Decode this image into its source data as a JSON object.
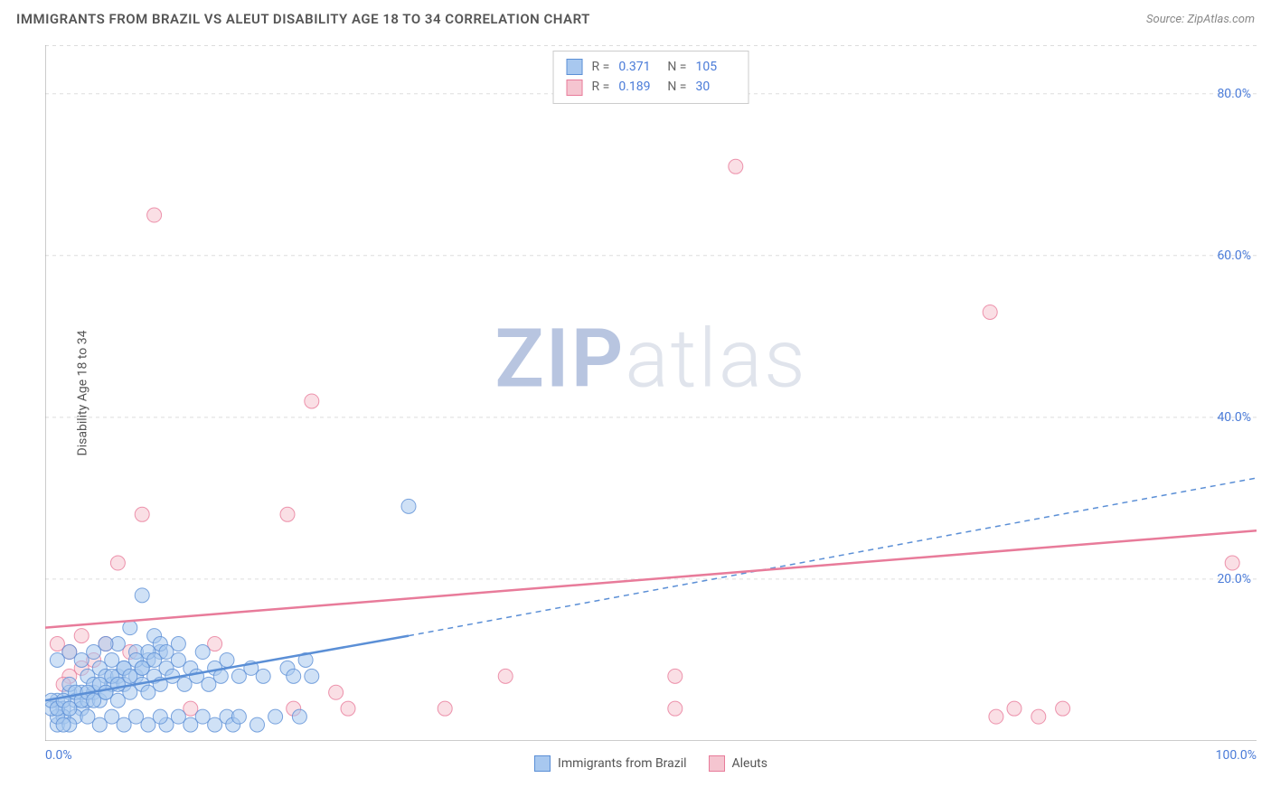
{
  "header": {
    "title": "IMMIGRANTS FROM BRAZIL VS ALEUT DISABILITY AGE 18 TO 34 CORRELATION CHART",
    "source_prefix": "Source: ",
    "source_name": "ZipAtlas.com"
  },
  "watermark": {
    "zip": "ZIP",
    "atlas": "atlas"
  },
  "chart": {
    "type": "scatter",
    "ylabel": "Disability Age 18 to 34",
    "xlim": [
      0,
      100
    ],
    "ylim": [
      0,
      86
    ],
    "xtick_positions": [
      0,
      50,
      100
    ],
    "xtick_labels": [
      "0.0%",
      "",
      "100.0%"
    ],
    "xtick_minor": [
      16.67,
      33.33,
      50,
      66.67,
      83.33
    ],
    "ytick_positions": [
      20,
      40,
      60,
      80
    ],
    "ytick_labels": [
      "20.0%",
      "40.0%",
      "60.0%",
      "80.0%"
    ],
    "background_color": "#ffffff",
    "grid_color": "#dddddd",
    "axis_color": "#999999",
    "marker_radius": 8,
    "marker_opacity": 0.55,
    "series": [
      {
        "name": "Immigrants from Brazil",
        "color_fill": "#a8c8ef",
        "color_stroke": "#5b8fd6",
        "R": "0.371",
        "N": "105",
        "trend": {
          "x1": 0,
          "y1": 5,
          "x2": 30,
          "y2": 13,
          "dash_x2": 100,
          "dash_y2": 32.5,
          "stroke_width": 2.5
        },
        "points": [
          [
            1,
            5
          ],
          [
            1.5,
            4
          ],
          [
            2,
            6
          ],
          [
            2,
            7
          ],
          [
            2.5,
            5
          ],
          [
            3,
            4
          ],
          [
            3,
            6
          ],
          [
            3.5,
            8
          ],
          [
            3.5,
            5
          ],
          [
            4,
            6
          ],
          [
            4,
            7
          ],
          [
            4.5,
            5
          ],
          [
            4.5,
            9
          ],
          [
            5,
            6
          ],
          [
            5,
            8
          ],
          [
            5.5,
            7
          ],
          [
            5.5,
            10
          ],
          [
            6,
            5
          ],
          [
            6,
            8
          ],
          [
            6,
            12
          ],
          [
            6.5,
            7
          ],
          [
            6.5,
            9
          ],
          [
            7,
            6
          ],
          [
            7,
            14
          ],
          [
            7.5,
            8
          ],
          [
            7.5,
            11
          ],
          [
            8,
            7
          ],
          [
            8,
            9
          ],
          [
            8,
            18
          ],
          [
            8.5,
            6
          ],
          [
            8.5,
            10
          ],
          [
            9,
            8
          ],
          [
            9,
            13
          ],
          [
            9.5,
            7
          ],
          [
            9.5,
            11
          ],
          [
            10,
            9
          ],
          [
            10,
            2
          ],
          [
            10.5,
            8
          ],
          [
            11,
            10
          ],
          [
            11,
            3
          ],
          [
            11.5,
            7
          ],
          [
            12,
            2
          ],
          [
            12,
            9
          ],
          [
            12.5,
            8
          ],
          [
            13,
            3
          ],
          [
            13,
            11
          ],
          [
            13.5,
            7
          ],
          [
            14,
            2
          ],
          [
            14,
            9
          ],
          [
            14.5,
            8
          ],
          [
            15,
            3
          ],
          [
            15,
            10
          ],
          [
            15.5,
            2
          ],
          [
            16,
            8
          ],
          [
            16,
            3
          ],
          [
            17,
            9
          ],
          [
            17.5,
            2
          ],
          [
            18,
            8
          ],
          [
            19,
            3
          ],
          [
            20,
            9
          ],
          [
            20.5,
            8
          ],
          [
            21,
            3
          ],
          [
            21.5,
            10
          ],
          [
            22,
            8
          ],
          [
            30,
            29
          ],
          [
            1,
            10
          ],
          [
            2,
            11
          ],
          [
            3,
            10
          ],
          [
            4,
            11
          ],
          [
            5,
            12
          ],
          [
            2.5,
            3
          ],
          [
            3.5,
            3
          ],
          [
            4.5,
            2
          ],
          [
            5.5,
            3
          ],
          [
            6.5,
            2
          ],
          [
            7.5,
            3
          ],
          [
            8.5,
            2
          ],
          [
            9.5,
            3
          ],
          [
            1,
            2
          ],
          [
            1.5,
            3
          ],
          [
            2,
            2
          ],
          [
            1,
            3
          ],
          [
            1.5,
            2
          ],
          [
            0.5,
            4
          ],
          [
            0.5,
            5
          ],
          [
            1,
            4
          ],
          [
            1.5,
            5
          ],
          [
            2,
            4
          ],
          [
            2.5,
            6
          ],
          [
            3,
            5
          ],
          [
            3.5,
            6
          ],
          [
            4,
            5
          ],
          [
            4.5,
            7
          ],
          [
            5,
            6
          ],
          [
            5.5,
            8
          ],
          [
            6,
            7
          ],
          [
            6.5,
            9
          ],
          [
            7,
            8
          ],
          [
            7.5,
            10
          ],
          [
            8,
            9
          ],
          [
            8.5,
            11
          ],
          [
            9,
            10
          ],
          [
            9.5,
            12
          ],
          [
            10,
            11
          ],
          [
            11,
            12
          ]
        ]
      },
      {
        "name": "Aleuts",
        "color_fill": "#f5c5d0",
        "color_stroke": "#e87b9a",
        "R": "0.189",
        "N": "30",
        "trend": {
          "x1": 0,
          "y1": 14,
          "x2": 100,
          "y2": 26,
          "stroke_width": 2.5
        },
        "points": [
          [
            1,
            12
          ],
          [
            2,
            11
          ],
          [
            3,
            13
          ],
          [
            4,
            10
          ],
          [
            5,
            12
          ],
          [
            6,
            22
          ],
          [
            7,
            11
          ],
          [
            9,
            65
          ],
          [
            8,
            28
          ],
          [
            12,
            4
          ],
          [
            14,
            12
          ],
          [
            20,
            28
          ],
          [
            20.5,
            4
          ],
          [
            22,
            42
          ],
          [
            24,
            6
          ],
          [
            25,
            4
          ],
          [
            33,
            4
          ],
          [
            38,
            8
          ],
          [
            52,
            4
          ],
          [
            52,
            8
          ],
          [
            57,
            71
          ],
          [
            78,
            53
          ],
          [
            78.5,
            3
          ],
          [
            80,
            4
          ],
          [
            82,
            3
          ],
          [
            84,
            4
          ],
          [
            98,
            22
          ],
          [
            2,
            8
          ],
          [
            3,
            9
          ],
          [
            1.5,
            7
          ]
        ]
      }
    ]
  },
  "legend_top": {
    "r_label": "R =",
    "n_label": "N ="
  },
  "legend_bottom": {
    "items": [
      "Immigrants from Brazil",
      "Aleuts"
    ]
  }
}
